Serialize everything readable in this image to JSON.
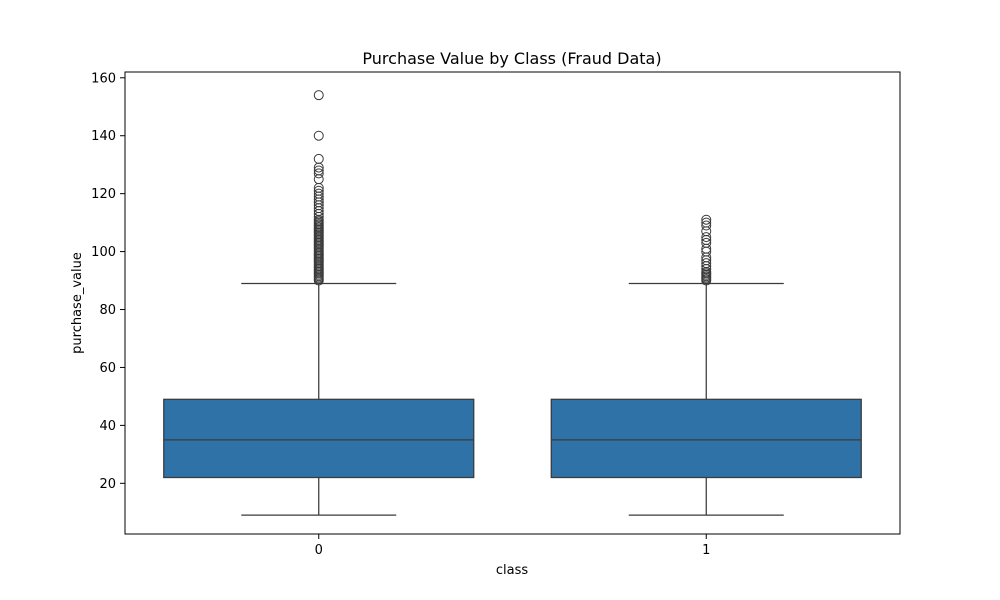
{
  "chart_data": {
    "type": "box",
    "title": "Purchase Value by Class (Fraud Data)",
    "xlabel": "class",
    "ylabel": "purchase_value",
    "categories": [
      "0",
      "1"
    ],
    "ylim": [
      2.5,
      162
    ],
    "yticks": [
      20,
      40,
      60,
      80,
      100,
      120,
      140,
      160
    ],
    "grid": false,
    "colors": {
      "box_fill": "#2e72a8",
      "line": "#3a3a3a"
    },
    "boxes": [
      {
        "category": "0",
        "whisker_low": 9,
        "q1": 22,
        "median": 35,
        "q3": 49,
        "whisker_high": 89,
        "outliers": [
          90,
          90.5,
          91,
          91.5,
          92,
          92.5,
          93,
          93.5,
          94,
          94.5,
          95,
          95.5,
          96,
          96.5,
          97,
          97.5,
          98,
          98.5,
          99,
          99.5,
          100,
          100.5,
          101,
          101.5,
          102,
          102.5,
          103,
          103.5,
          104,
          104.5,
          105,
          105.5,
          106,
          106.5,
          107,
          107.5,
          108,
          108.5,
          109,
          109.5,
          110,
          110.5,
          111,
          112,
          113,
          114,
          115,
          116,
          117,
          118,
          119,
          120,
          121,
          122,
          125,
          127,
          128,
          129,
          132,
          140,
          154
        ]
      },
      {
        "category": "1",
        "whisker_low": 9,
        "q1": 22,
        "median": 35,
        "q3": 49,
        "whisker_high": 89,
        "outliers": [
          90,
          90.5,
          91,
          91.5,
          92,
          92.5,
          93,
          94,
          95,
          96,
          97,
          98,
          100,
          101,
          103,
          104,
          105,
          107,
          109,
          110,
          111
        ]
      }
    ]
  }
}
